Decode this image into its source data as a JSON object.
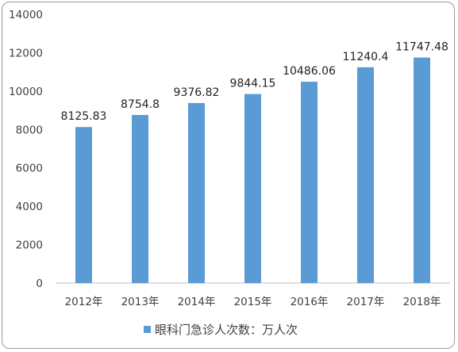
{
  "chart_data": {
    "type": "bar",
    "categories": [
      "2012年",
      "2013年",
      "2014年",
      "2015年",
      "2016年",
      "2017年",
      "2018年"
    ],
    "series": [
      {
        "name": "眼科门急诊人次数：万人次",
        "values": [
          8125.83,
          8754.8,
          9376.82,
          9844.15,
          10486.06,
          11240.4,
          11747.48
        ],
        "labels": [
          "8125.83",
          "8754.8",
          "9376.82",
          "9844.15",
          "10486.06",
          "11240.4",
          "11747.48"
        ]
      }
    ],
    "ylim": [
      0,
      14000
    ],
    "yticks": [
      0,
      2000,
      4000,
      6000,
      8000,
      10000,
      12000,
      14000
    ],
    "grid": false,
    "legend": "bottom",
    "title": "",
    "xlabel": "",
    "ylabel": ""
  },
  "colors": {
    "bar": "#5b9bd5",
    "axis": "#bfbfbf",
    "text": "#404040"
  }
}
